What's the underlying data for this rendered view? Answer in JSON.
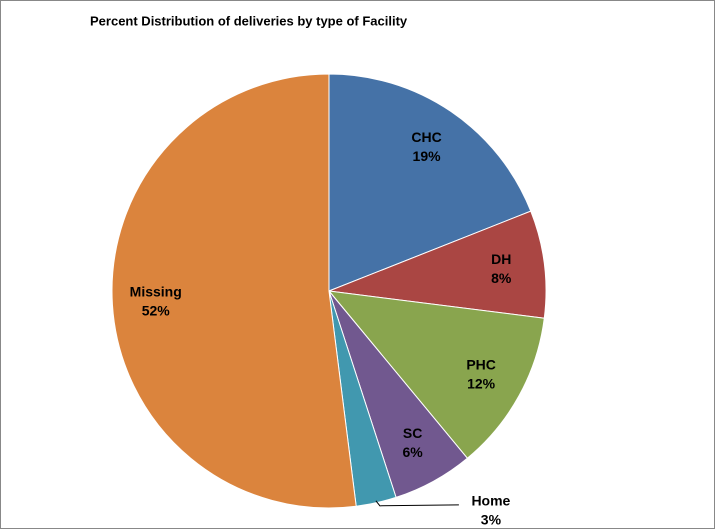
{
  "chart_data": {
    "type": "pie",
    "title": "Percent Distribution of deliveries by type of Facility",
    "categories": [
      "CHC",
      "DH",
      "PHC",
      "SC",
      "Home",
      "Missing"
    ],
    "values": [
      19,
      8,
      12,
      6,
      3,
      52
    ],
    "value_labels": [
      "19%",
      "8%",
      "12%",
      "6%",
      "3%",
      "52%"
    ],
    "colors": [
      "#4572a7",
      "#aa4643",
      "#89a54e",
      "#71588f",
      "#4198af",
      "#db843d"
    ]
  }
}
